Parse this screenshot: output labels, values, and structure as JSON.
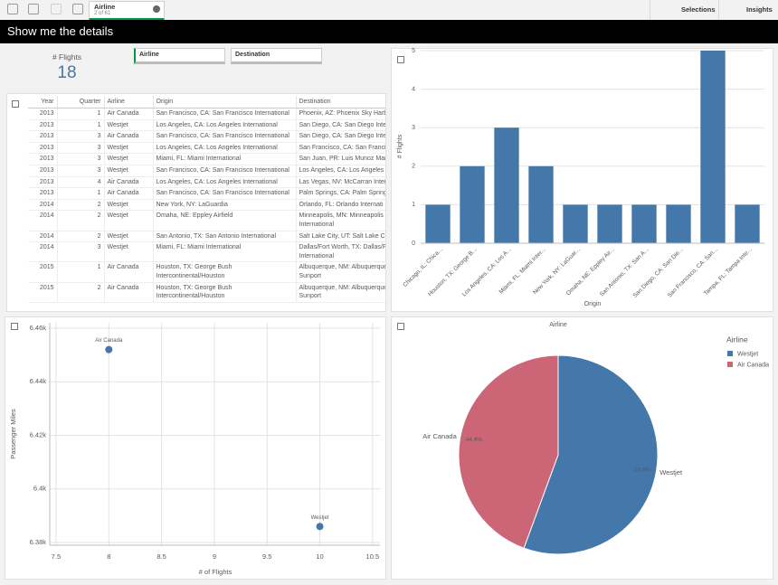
{
  "toolbar": {
    "tab_title": "Airline",
    "tab_subtitle": "2 of 61",
    "selections": "Selections",
    "insights": "Insights"
  },
  "sheet_title": "Show me the details",
  "kpi": {
    "title": "# Flights",
    "value": 18
  },
  "filters": [
    "Airline",
    "Destination"
  ],
  "table": {
    "headers": [
      "Year",
      "Quarter",
      "Airline",
      "Origin",
      "Destination"
    ],
    "rows": [
      [
        2013,
        1,
        "Air Canada",
        "San Francisco, CA: San Francisco International",
        "Phoenix, AZ: Phoenix Sky Harb"
      ],
      [
        2013,
        1,
        "Westjet",
        "Los Angeles, CA: Los Angeles International",
        "San Diego, CA: San Diego Inter"
      ],
      [
        2013,
        3,
        "Air Canada",
        "San Francisco, CA: San Francisco International",
        "San Diego, CA: San Diego Inter"
      ],
      [
        2013,
        3,
        "Westjet",
        "Los Angeles, CA: Los Angeles International",
        "San Francisco, CA: San Francis"
      ],
      [
        2013,
        3,
        "Westjet",
        "Miami, FL: Miami International",
        "San Juan, PR: Luis Munoz Mari"
      ],
      [
        2013,
        3,
        "Westjet",
        "San Francisco, CA: San Francisco International",
        "Los Angeles, CA: Los Angeles I"
      ],
      [
        2013,
        4,
        "Air Canada",
        "Los Angeles, CA: Los Angeles International",
        "Las Vegas, NV: McCarran Inter"
      ],
      [
        2013,
        1,
        "Air Canada",
        "San Francisco, CA: San Francisco International",
        "Palm Springs, CA: Palm Spring"
      ],
      [
        2014,
        2,
        "Westjet",
        "New York, NY: LaGuardia",
        "Orlando, FL: Orlando Internati"
      ],
      [
        2014,
        2,
        "Westjet",
        "Omaha, NE: Eppley Airfield",
        "Minneapolis, MN: Minneapolis\nInternational"
      ],
      [
        2014,
        2,
        "Westjet",
        "San Antonio, TX: San Antonio International",
        "Salt Lake City, UT: Salt Lake Cit"
      ],
      [
        2014,
        3,
        "Westjet",
        "Miami, FL: Miami International",
        "Dallas/Fort Worth, TX: Dallas/F\nInternational"
      ],
      [
        2015,
        1,
        "Air Canada",
        "Houston, TX: George Bush\nIntercontinental/Houston",
        "Albuquerque, NM: Albuquerque\nSunport"
      ],
      [
        2015,
        2,
        "Air Canada",
        "Houston, TX: George Bush\nIntercontinental/Houston",
        "Albuquerque, NM: Albuquerque\nSunport"
      ]
    ]
  },
  "chart_data": [
    {
      "type": "bar",
      "x_label": "Origin",
      "y_label": "# Flights",
      "categories": [
        "Chicago, IL: Chica...",
        "Houston, TX: George B...",
        "Los Angeles, CA: Los A...",
        "Miami, FL: Miami Inter...",
        "New York, NY: LaGuar...",
        "Omaha, NE: Eppley Air...",
        "San Antonio, TX: San A...",
        "San Diego, CA: San Die...",
        "San Francisco, CA: San...",
        "Tampa, FL: Tampa Inte..."
      ],
      "values": [
        1,
        2,
        3,
        2,
        1,
        1,
        1,
        1,
        5,
        1
      ],
      "color": "#4477aa",
      "ylim": [
        0,
        5
      ],
      "yticks": [
        0,
        1,
        2,
        3,
        4,
        5
      ],
      "grid": true
    },
    {
      "type": "scatter",
      "x_label": "# of Flights",
      "y_label": "Passenger Miles",
      "color": "#4477aa",
      "points": [
        {
          "label": "Air Canada",
          "x": 8,
          "y": 6452
        },
        {
          "label": "Westjet",
          "x": 10,
          "y": 6386
        }
      ],
      "xlim": [
        7.44,
        10.57
      ],
      "xticks": [
        7.5,
        8,
        8.5,
        9,
        9.5,
        10,
        10.5
      ],
      "ylim": [
        6379,
        6462
      ],
      "yticks": [
        {
          "value": 6380,
          "label": "6.38k"
        },
        {
          "value": 6400,
          "label": "6.4k"
        },
        {
          "value": 6420,
          "label": "6.42k"
        },
        {
          "value": 6440,
          "label": "6.44k"
        },
        {
          "value": 6460,
          "label": "6.46k"
        }
      ],
      "grid": true
    },
    {
      "type": "pie",
      "title": "Airline",
      "legend_title": "Airline",
      "categories": [
        "Westjet",
        "Air Canada"
      ],
      "values": [
        55.6,
        44.4
      ],
      "value_labels": [
        "55.6%",
        "44.4%"
      ],
      "colors": [
        "#4477aa",
        "#cc6677"
      ]
    }
  ]
}
